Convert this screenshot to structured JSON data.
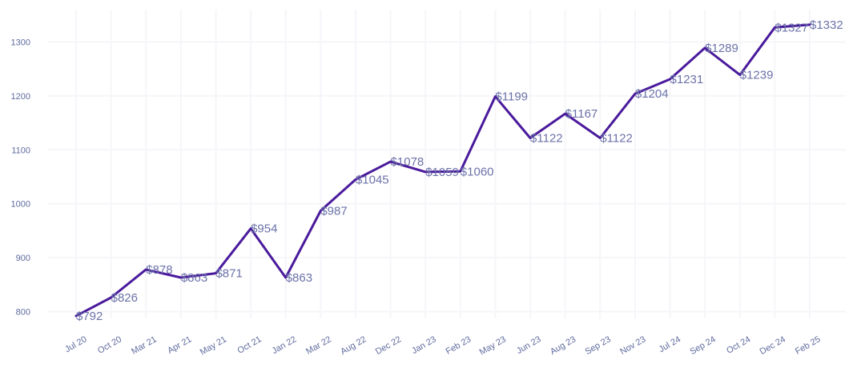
{
  "chart_data": {
    "type": "line",
    "title": "",
    "xlabel": "",
    "ylabel": "",
    "ylim": [
      760,
      1360
    ],
    "yticks": [
      800,
      900,
      1000,
      1100,
      1200,
      1300
    ],
    "grid": true,
    "series_color": "#4a1a9c",
    "label_prefix": "$",
    "categories": [
      "Jul 20",
      "Oct 20",
      "Mar 21",
      "Apr 21",
      "May 21",
      "Oct 21",
      "Jan 22",
      "Mar 22",
      "Aug 22",
      "Dec 22",
      "Jan 23",
      "Feb 23",
      "May 23",
      "Jun 23",
      "Aug 23",
      "Sep 23",
      "Nov 23",
      "Jul 24",
      "Sep 24",
      "Oct 24",
      "Dec 24",
      "Feb 25"
    ],
    "values": [
      792,
      826,
      878,
      863,
      871,
      954,
      863,
      987,
      1045,
      1078,
      1059,
      1060,
      1199,
      1122,
      1167,
      1122,
      1204,
      1231,
      1289,
      1239,
      1327,
      1332
    ]
  }
}
